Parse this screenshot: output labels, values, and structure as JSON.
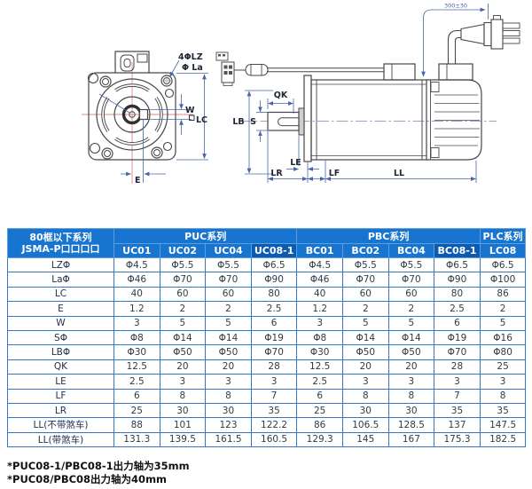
{
  "diagram": {
    "front": {
      "holes_label": "4ΦLZ",
      "bolt_circle_label": "Φ La",
      "w_label": "W",
      "lc_label": "LC",
      "e_label": "E"
    },
    "side": {
      "qk_label": "QK",
      "s_label": "S",
      "lb_label": "LB",
      "le_label": "LE",
      "lr_label": "LR",
      "lf_label": "LF",
      "ll_label": "LL",
      "cable_length_label": "300±30"
    }
  },
  "table": {
    "corner_title_line1": "80框以下系列",
    "corner_title_line2": "JSMA-P口口口口",
    "groups": [
      {
        "label": "PUC系列",
        "span": 4
      },
      {
        "label": "PBC系列",
        "span": 4
      },
      {
        "label": "PLC系列",
        "span": 1
      }
    ],
    "models": [
      "UC01",
      "UC02",
      "UC04",
      "UC08-1",
      "BC01",
      "BC02",
      "BC04",
      "BC08-1",
      "LC08"
    ],
    "dark_models": [
      "UC08-1",
      "BC08-1"
    ],
    "rows": [
      {
        "label": "LZΦ",
        "values": [
          "Φ4.5",
          "Φ5.5",
          "Φ5.5",
          "Φ6.5",
          "Φ4.5",
          "Φ5.5",
          "Φ5.5",
          "Φ6.5",
          "Φ6.5"
        ]
      },
      {
        "label": "LaΦ",
        "values": [
          "Φ46",
          "Φ70",
          "Φ70",
          "Φ90",
          "Φ46",
          "Φ70",
          "Φ70",
          "Φ90",
          "Φ100"
        ]
      },
      {
        "label": "LC",
        "values": [
          "40",
          "60",
          "60",
          "80",
          "40",
          "60",
          "60",
          "80",
          "86"
        ]
      },
      {
        "label": "E",
        "values": [
          "1.2",
          "2",
          "2",
          "2.5",
          "1.2",
          "2",
          "2",
          "2.5",
          "2"
        ]
      },
      {
        "label": "W",
        "values": [
          "3",
          "5",
          "5",
          "6",
          "3",
          "5",
          "5",
          "6",
          "5"
        ]
      },
      {
        "label": "SΦ",
        "values": [
          "Φ8",
          "Φ14",
          "Φ14",
          "Φ19",
          "Φ8",
          "Φ14",
          "Φ14",
          "Φ19",
          "Φ16"
        ]
      },
      {
        "label": "LBΦ",
        "values": [
          "Φ30",
          "Φ50",
          "Φ50",
          "Φ70",
          "Φ30",
          "Φ50",
          "Φ50",
          "Φ70",
          "Φ80"
        ]
      },
      {
        "label": "QK",
        "values": [
          "12.5",
          "20",
          "20",
          "28",
          "12.5",
          "20",
          "20",
          "28",
          "25"
        ]
      },
      {
        "label": "LE",
        "values": [
          "2.5",
          "3",
          "3",
          "3",
          "2.5",
          "3",
          "3",
          "3",
          "3"
        ]
      },
      {
        "label": "LF",
        "values": [
          "6",
          "8",
          "8",
          "7",
          "6",
          "8",
          "8",
          "7",
          "8"
        ]
      },
      {
        "label": "LR",
        "values": [
          "25",
          "30",
          "30",
          "35",
          "25",
          "30",
          "30",
          "35",
          "35"
        ]
      },
      {
        "label": "LL(不带煞车)",
        "values": [
          "88",
          "101",
          "123",
          "122.2",
          "86",
          "106.5",
          "128.5",
          "137",
          "147.5"
        ]
      },
      {
        "label": "LL(带煞车)",
        "values": [
          "131.3",
          "139.5",
          "161.5",
          "160.5",
          "129.3",
          "145",
          "167",
          "175.3",
          "182.5"
        ]
      }
    ]
  },
  "notes": [
    "*PUC08-1/PBC08-1出力轴为35mm",
    "*PUC08/PBC08出力轴为40mm"
  ],
  "colors": {
    "header_blue": "#1774cf",
    "header_dark_blue": "#0d5bb0",
    "table_border": "#3277c8",
    "dimension_blue": "#4a66a8",
    "centerline_red": "#d98b8b"
  }
}
